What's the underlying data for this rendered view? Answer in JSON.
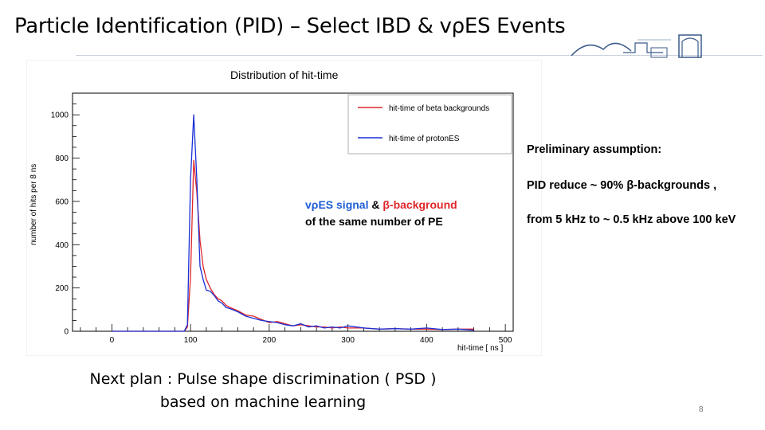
{
  "slide": {
    "title": "Particle Identification (PID) – Select IBD & vρES Events",
    "page_number": "8"
  },
  "annotation": {
    "signal_label": "vρES signal",
    "amp": "&",
    "background_label": "β-background",
    "line2": "of the same number of PE",
    "signal_color": "#1f5fd6",
    "background_color": "#e0262a"
  },
  "assumptions": {
    "line1": "Preliminary assumption:",
    "line2": "PID reduce ~ 90% β-backgrounds ,",
    "line3": "from 5 kHz to ~ 0.5 kHz above 100 keV"
  },
  "next_plan": {
    "line1": "Next plan : Pulse shape discrimination ( PSD )",
    "line2": "based on machine learning"
  },
  "chart_data": {
    "type": "line",
    "title": "Distribution of hit-time",
    "xlabel": "hit-time [ ns ]",
    "ylabel": "number of hits per 8 ns",
    "xlim": [
      -50,
      510
    ],
    "ylim": [
      0,
      1100
    ],
    "xticks": [
      0,
      100,
      200,
      300,
      400,
      500
    ],
    "yticks": [
      0,
      200,
      400,
      600,
      800,
      1000
    ],
    "grid": false,
    "legend_position": "top-right",
    "series": [
      {
        "name": "hit-time of beta backgrounds",
        "color": "#e0262a",
        "x": [
          0,
          92,
          96,
          100,
          104,
          108,
          112,
          116,
          120,
          125,
          130,
          135,
          140,
          145,
          150,
          160,
          170,
          180,
          190,
          200,
          210,
          220,
          230,
          240,
          250,
          260,
          270,
          280,
          290,
          300,
          320,
          340,
          360,
          380,
          400,
          420,
          440,
          460
        ],
        "y": [
          0,
          0,
          20,
          250,
          790,
          640,
          420,
          300,
          240,
          200,
          170,
          150,
          140,
          120,
          110,
          95,
          75,
          70,
          55,
          40,
          45,
          35,
          25,
          30,
          25,
          20,
          20,
          15,
          20,
          15,
          15,
          10,
          12,
          10,
          10,
          8,
          10,
          10
        ]
      },
      {
        "name": "hit-time of protonES",
        "color": "#1a2fd6",
        "x": [
          0,
          92,
          96,
          100,
          104,
          108,
          112,
          116,
          120,
          125,
          130,
          135,
          140,
          145,
          150,
          160,
          170,
          180,
          190,
          200,
          210,
          220,
          230,
          240,
          250,
          260,
          270,
          280,
          290,
          300,
          320,
          340,
          360,
          380,
          400,
          420,
          440,
          460
        ],
        "y": [
          0,
          0,
          30,
          700,
          1000,
          700,
          300,
          240,
          190,
          185,
          165,
          140,
          130,
          110,
          105,
          90,
          70,
          60,
          50,
          45,
          40,
          30,
          25,
          35,
          20,
          25,
          15,
          20,
          15,
          25,
          15,
          10,
          12,
          10,
          15,
          8,
          10,
          5
        ]
      }
    ]
  }
}
